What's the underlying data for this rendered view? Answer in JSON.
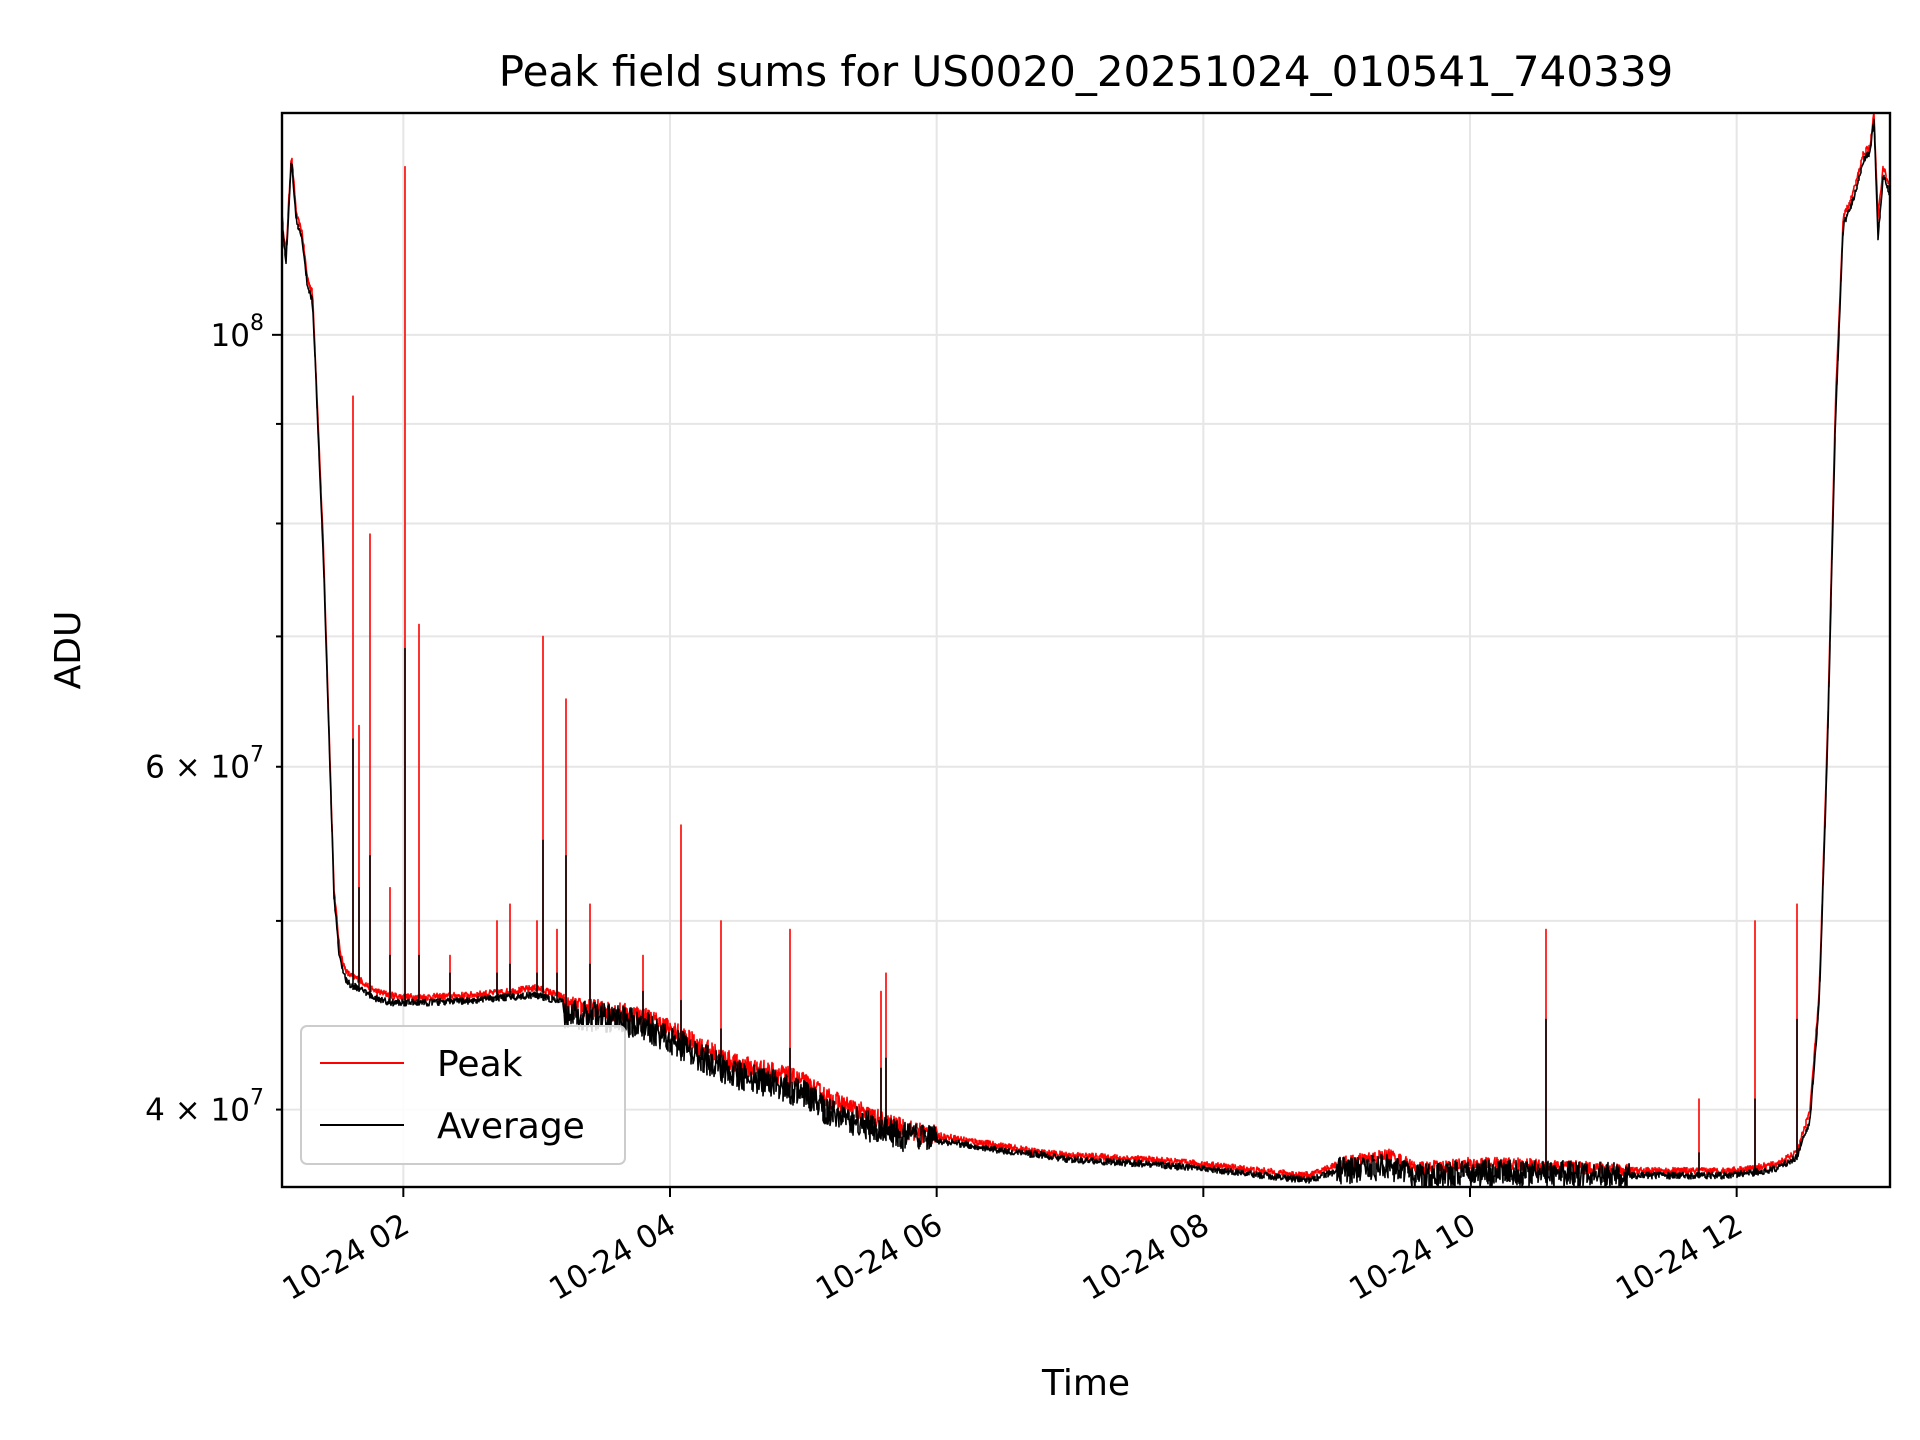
{
  "chart_data": {
    "type": "line",
    "title": "Peak field sums for US0020_20251024_010541_740339",
    "xlabel": "Time",
    "ylabel": "ADU",
    "yscale": "log",
    "xlim": [
      1.09,
      13.15
    ],
    "ylim": [
      36500000,
      130000000
    ],
    "grid": true,
    "legend_position": "lower-left",
    "x_ticks": [
      {
        "value": 2,
        "label": "10-24 02"
      },
      {
        "value": 4,
        "label": "10-24 04"
      },
      {
        "value": 6,
        "label": "10-24 06"
      },
      {
        "value": 8,
        "label": "10-24 08"
      },
      {
        "value": 10,
        "label": "10-24 10"
      },
      {
        "value": 12,
        "label": "10-24 12"
      }
    ],
    "y_ticks_major": [
      {
        "value": 100000000,
        "base": "10",
        "exp": "8"
      }
    ],
    "y_ticks_minor": [
      {
        "value": 40000000,
        "mant": "4",
        "base": "10",
        "exp": "7"
      },
      {
        "value": 60000000,
        "mant": "6",
        "base": "10",
        "exp": "7"
      }
    ],
    "y_grid_values": [
      40000000,
      50000000,
      60000000,
      70000000,
      80000000,
      90000000,
      100000000
    ],
    "series": [
      {
        "name": "Peak",
        "color": "#ff0000",
        "x": [
          1.09,
          1.12,
          1.16,
          1.2,
          1.24,
          1.28,
          1.32,
          1.4,
          1.48,
          1.52,
          1.55,
          1.58,
          1.62,
          1.66,
          1.7,
          1.75,
          1.8,
          1.9,
          2.0,
          2.2,
          2.5,
          2.8,
          3.0,
          3.2,
          3.21,
          3.5,
          3.8,
          4.0,
          4.2,
          4.5,
          4.8,
          5.0,
          5.2,
          5.5,
          5.7,
          5.9,
          6.2,
          6.5,
          6.8,
          7.0,
          7.3,
          7.6,
          8.0,
          8.3,
          8.6,
          8.8,
          9.0,
          9.2,
          9.4,
          9.6,
          9.8,
          10.0,
          10.3,
          10.6,
          11.0,
          11.3,
          11.6,
          11.9,
          12.1,
          12.3,
          12.45,
          12.55,
          12.62,
          12.68,
          12.74,
          12.8,
          12.85,
          12.9,
          12.95,
          13.0,
          13.03,
          13.06,
          13.1,
          13.15
        ],
        "y": [
          115000000,
          110000000,
          124000000,
          115000000,
          113000000,
          107000000,
          105000000,
          78000000,
          52000000,
          48500000,
          47500000,
          47000000,
          46800000,
          46700000,
          46500000,
          46200000,
          46000000,
          45800000,
          45700000,
          45700000,
          45800000,
          46000000,
          46200000,
          45700000,
          45200000,
          45000000,
          44700000,
          44000000,
          43200000,
          42200000,
          41800000,
          41300000,
          40500000,
          39700000,
          39200000,
          38900000,
          38600000,
          38300000,
          38000000,
          37900000,
          37800000,
          37700000,
          37500000,
          37300000,
          37100000,
          37000000,
          37500000,
          37700000,
          37900000,
          37300000,
          37400000,
          37500000,
          37500000,
          37400000,
          37300000,
          37200000,
          37200000,
          37200000,
          37300000,
          37500000,
          38000000,
          40000000,
          46000000,
          62000000,
          92000000,
          115000000,
          117000000,
          120000000,
          124000000,
          125000000,
          130000000,
          115000000,
          122000000,
          119000000
        ]
      },
      {
        "name": "Average",
        "color": "#000000",
        "x": [
          1.09,
          1.12,
          1.16,
          1.2,
          1.24,
          1.28,
          1.32,
          1.4,
          1.48,
          1.52,
          1.55,
          1.58,
          1.62,
          1.66,
          1.7,
          1.75,
          1.8,
          1.9,
          2.0,
          2.2,
          2.5,
          2.8,
          3.0,
          3.2,
          3.21,
          3.5,
          3.8,
          4.0,
          4.2,
          4.5,
          4.8,
          5.0,
          5.2,
          5.5,
          5.7,
          5.9,
          6.2,
          6.5,
          6.8,
          7.0,
          7.3,
          7.6,
          8.0,
          8.3,
          8.6,
          8.8,
          9.0,
          9.2,
          9.4,
          9.6,
          9.8,
          10.0,
          10.3,
          10.6,
          11.0,
          11.3,
          11.6,
          11.9,
          12.1,
          12.3,
          12.45,
          12.55,
          12.62,
          12.68,
          12.74,
          12.8,
          12.85,
          12.9,
          12.95,
          13.0,
          13.03,
          13.06,
          13.1,
          13.15
        ],
        "y": [
          114000000,
          109000000,
          123000000,
          114000000,
          112000000,
          106000000,
          104000000,
          77000000,
          51500000,
          48000000,
          47000000,
          46500000,
          46300000,
          46200000,
          46000000,
          45800000,
          45600000,
          45400000,
          45400000,
          45400000,
          45500000,
          45700000,
          45800000,
          45400000,
          44800000,
          44600000,
          44200000,
          43500000,
          42700000,
          41700000,
          41200000,
          40700000,
          39900000,
          39200000,
          38800000,
          38600000,
          38400000,
          38100000,
          37900000,
          37700000,
          37600000,
          37500000,
          37300000,
          37100000,
          36900000,
          36800000,
          37200000,
          37300000,
          37400000,
          36900000,
          37000000,
          37100000,
          37100000,
          37100000,
          37000000,
          37000000,
          37000000,
          37000000,
          37100000,
          37300000,
          37800000,
          39500000,
          45500000,
          61000000,
          90000000,
          114000000,
          116000000,
          119000000,
          123000000,
          124000000,
          129000000,
          112000000,
          121000000,
          118000000
        ]
      }
    ],
    "spikes": [
      {
        "x": 1.62,
        "peak": 93000000,
        "avg": 62000000
      },
      {
        "x": 1.67,
        "peak": 63000000,
        "avg": 52000000
      },
      {
        "x": 1.75,
        "peak": 79000000,
        "avg": 54000000
      },
      {
        "x": 1.9,
        "peak": 52000000,
        "avg": 48000000
      },
      {
        "x": 2.01,
        "peak": 122000000,
        "avg": 69000000
      },
      {
        "x": 2.12,
        "peak": 71000000,
        "avg": 48000000
      },
      {
        "x": 2.35,
        "peak": 48000000,
        "avg": 47000000
      },
      {
        "x": 2.7,
        "peak": 50000000,
        "avg": 47000000
      },
      {
        "x": 2.8,
        "peak": 51000000,
        "avg": 47500000
      },
      {
        "x": 3.0,
        "peak": 50000000,
        "avg": 47000000
      },
      {
        "x": 3.05,
        "peak": 70000000,
        "avg": 55000000
      },
      {
        "x": 3.15,
        "peak": 49500000,
        "avg": 47000000
      },
      {
        "x": 3.22,
        "peak": 65000000,
        "avg": 54000000
      },
      {
        "x": 3.4,
        "peak": 51000000,
        "avg": 47500000
      },
      {
        "x": 3.8,
        "peak": 48000000,
        "avg": 46000000
      },
      {
        "x": 4.08,
        "peak": 56000000,
        "avg": 45500000
      },
      {
        "x": 4.38,
        "peak": 50000000,
        "avg": 44000000
      },
      {
        "x": 4.9,
        "peak": 49500000,
        "avg": 43000000
      },
      {
        "x": 5.58,
        "peak": 46000000,
        "avg": 42000000
      },
      {
        "x": 5.62,
        "peak": 47000000,
        "avg": 42500000
      },
      {
        "x": 10.57,
        "peak": 49500000,
        "avg": 44500000
      },
      {
        "x": 11.72,
        "peak": 40500000,
        "avg": 38000000
      },
      {
        "x": 12.14,
        "peak": 50000000,
        "avg": 40500000
      },
      {
        "x": 12.45,
        "peak": 51000000,
        "avg": 44500000
      }
    ]
  }
}
